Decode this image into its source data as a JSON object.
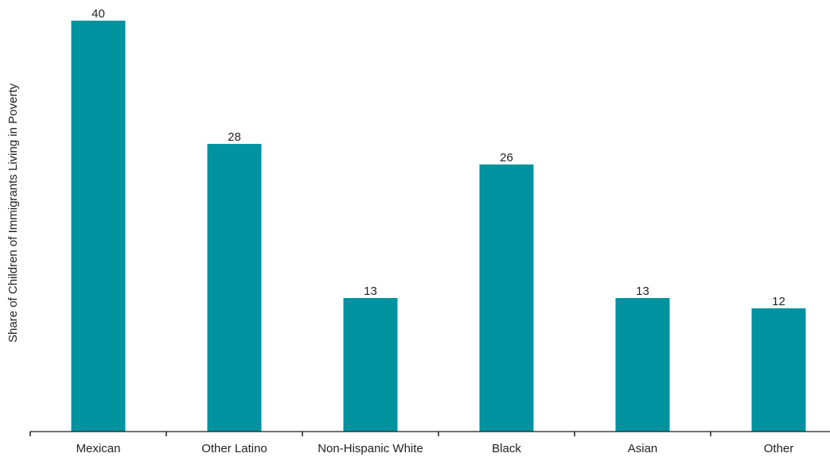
{
  "chart_data": {
    "type": "bar",
    "title": "",
    "xlabel": "",
    "ylabel": "Share of Children of Immigrants Living in Poverty",
    "categories": [
      "Mexican",
      "Other Latino",
      "Non-Hispanic White",
      "Black",
      "Asian",
      "Other"
    ],
    "values": [
      40,
      28,
      13,
      26,
      13,
      12
    ],
    "data_labels": [
      "40",
      "28",
      "13",
      "26",
      "13",
      "12"
    ],
    "ylim": [
      0,
      41.5
    ],
    "grid": false,
    "legend": "none",
    "colors": {
      "bar": "#00929f",
      "axis": "#231f20",
      "text": "#231f20"
    }
  }
}
